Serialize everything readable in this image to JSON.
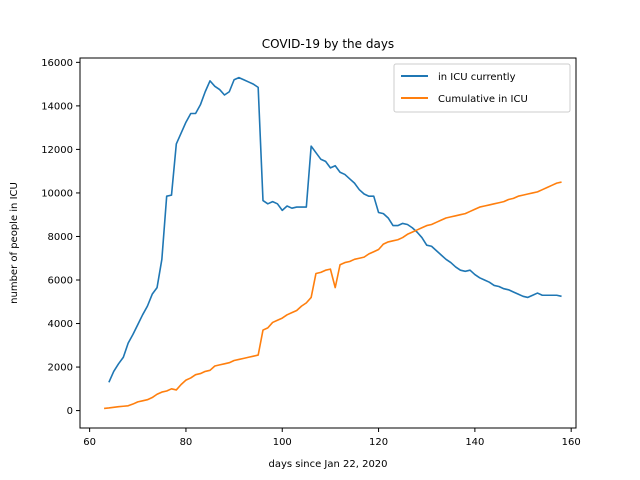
{
  "chart_data": {
    "type": "line",
    "title": "COVID-19 by the days",
    "xlabel": "days since Jan 22, 2020",
    "ylabel": "number of people in ICU",
    "xlim": [
      58,
      161
    ],
    "ylim": [
      -800,
      16200
    ],
    "x_ticks": [
      60,
      80,
      100,
      120,
      140,
      160
    ],
    "y_ticks": [
      0,
      2000,
      4000,
      6000,
      8000,
      10000,
      12000,
      14000,
      16000
    ],
    "grid": false,
    "legend_position": "top-right",
    "series": [
      {
        "name": "in ICU currently",
        "color": "#1f77b4",
        "points": [
          [
            64,
            1300
          ],
          [
            65,
            1800
          ],
          [
            66,
            2150
          ],
          [
            67,
            2450
          ],
          [
            68,
            3100
          ],
          [
            69,
            3500
          ],
          [
            70,
            3950
          ],
          [
            71,
            4400
          ],
          [
            72,
            4800
          ],
          [
            73,
            5350
          ],
          [
            74,
            5650
          ],
          [
            75,
            6950
          ],
          [
            76,
            9850
          ],
          [
            77,
            9900
          ],
          [
            78,
            12250
          ],
          [
            79,
            12750
          ],
          [
            80,
            13250
          ],
          [
            81,
            13650
          ],
          [
            82,
            13650
          ],
          [
            83,
            14050
          ],
          [
            84,
            14650
          ],
          [
            85,
            15150
          ],
          [
            86,
            14900
          ],
          [
            87,
            14750
          ],
          [
            88,
            14500
          ],
          [
            89,
            14650
          ],
          [
            90,
            15200
          ],
          [
            91,
            15300
          ],
          [
            92,
            15200
          ],
          [
            93,
            15100
          ],
          [
            94,
            15000
          ],
          [
            95,
            14850
          ],
          [
            96,
            9650
          ],
          [
            97,
            9500
          ],
          [
            98,
            9600
          ],
          [
            99,
            9500
          ],
          [
            100,
            9200
          ],
          [
            101,
            9400
          ],
          [
            102,
            9300
          ],
          [
            103,
            9350
          ],
          [
            104,
            9350
          ],
          [
            105,
            9350
          ],
          [
            106,
            12150
          ],
          [
            107,
            11850
          ],
          [
            108,
            11550
          ],
          [
            109,
            11450
          ],
          [
            110,
            11150
          ],
          [
            111,
            11250
          ],
          [
            112,
            10950
          ],
          [
            113,
            10850
          ],
          [
            114,
            10650
          ],
          [
            115,
            10450
          ],
          [
            116,
            10150
          ],
          [
            117,
            9950
          ],
          [
            118,
            9850
          ],
          [
            119,
            9850
          ],
          [
            120,
            9100
          ],
          [
            121,
            9050
          ],
          [
            122,
            8850
          ],
          [
            123,
            8500
          ],
          [
            124,
            8500
          ],
          [
            125,
            8600
          ],
          [
            126,
            8550
          ],
          [
            127,
            8400
          ],
          [
            128,
            8200
          ],
          [
            129,
            7950
          ],
          [
            130,
            7600
          ],
          [
            131,
            7550
          ],
          [
            132,
            7350
          ],
          [
            133,
            7150
          ],
          [
            134,
            6950
          ],
          [
            135,
            6800
          ],
          [
            136,
            6600
          ],
          [
            137,
            6450
          ],
          [
            138,
            6400
          ],
          [
            139,
            6450
          ],
          [
            140,
            6250
          ],
          [
            141,
            6100
          ],
          [
            142,
            6000
          ],
          [
            143,
            5900
          ],
          [
            144,
            5750
          ],
          [
            145,
            5700
          ],
          [
            146,
            5600
          ],
          [
            147,
            5550
          ],
          [
            148,
            5450
          ],
          [
            149,
            5350
          ],
          [
            150,
            5250
          ],
          [
            151,
            5200
          ],
          [
            152,
            5300
          ],
          [
            153,
            5400
          ],
          [
            154,
            5300
          ],
          [
            155,
            5300
          ],
          [
            156,
            5300
          ],
          [
            157,
            5300
          ],
          [
            158,
            5250
          ]
        ]
      },
      {
        "name": "Cumulative in ICU",
        "color": "#ff7f0e",
        "points": [
          [
            63,
            100
          ],
          [
            64,
            120
          ],
          [
            65,
            150
          ],
          [
            66,
            180
          ],
          [
            67,
            200
          ],
          [
            68,
            220
          ],
          [
            69,
            300
          ],
          [
            70,
            400
          ],
          [
            71,
            450
          ],
          [
            72,
            500
          ],
          [
            73,
            600
          ],
          [
            74,
            750
          ],
          [
            75,
            850
          ],
          [
            76,
            900
          ],
          [
            77,
            1000
          ],
          [
            78,
            950
          ],
          [
            79,
            1200
          ],
          [
            80,
            1400
          ],
          [
            81,
            1500
          ],
          [
            82,
            1650
          ],
          [
            83,
            1700
          ],
          [
            84,
            1800
          ],
          [
            85,
            1850
          ],
          [
            86,
            2050
          ],
          [
            87,
            2100
          ],
          [
            88,
            2150
          ],
          [
            89,
            2200
          ],
          [
            90,
            2300
          ],
          [
            91,
            2350
          ],
          [
            92,
            2400
          ],
          [
            93,
            2450
          ],
          [
            94,
            2500
          ],
          [
            95,
            2550
          ],
          [
            96,
            3700
          ],
          [
            97,
            3800
          ],
          [
            98,
            4050
          ],
          [
            99,
            4150
          ],
          [
            100,
            4250
          ],
          [
            101,
            4400
          ],
          [
            102,
            4500
          ],
          [
            103,
            4600
          ],
          [
            104,
            4800
          ],
          [
            105,
            4950
          ],
          [
            106,
            5200
          ],
          [
            107,
            6300
          ],
          [
            108,
            6350
          ],
          [
            109,
            6450
          ],
          [
            110,
            6500
          ],
          [
            111,
            5650
          ],
          [
            112,
            6700
          ],
          [
            113,
            6800
          ],
          [
            114,
            6850
          ],
          [
            115,
            6950
          ],
          [
            116,
            7000
          ],
          [
            117,
            7050
          ],
          [
            118,
            7200
          ],
          [
            119,
            7300
          ],
          [
            120,
            7400
          ],
          [
            121,
            7650
          ],
          [
            122,
            7750
          ],
          [
            123,
            7800
          ],
          [
            124,
            7850
          ],
          [
            125,
            7950
          ],
          [
            126,
            8100
          ],
          [
            127,
            8200
          ],
          [
            128,
            8300
          ],
          [
            129,
            8400
          ],
          [
            130,
            8500
          ],
          [
            131,
            8550
          ],
          [
            132,
            8650
          ],
          [
            133,
            8750
          ],
          [
            134,
            8850
          ],
          [
            135,
            8900
          ],
          [
            136,
            8950
          ],
          [
            137,
            9000
          ],
          [
            138,
            9050
          ],
          [
            139,
            9150
          ],
          [
            140,
            9250
          ],
          [
            141,
            9350
          ],
          [
            142,
            9400
          ],
          [
            143,
            9450
          ],
          [
            144,
            9500
          ],
          [
            145,
            9550
          ],
          [
            146,
            9600
          ],
          [
            147,
            9700
          ],
          [
            148,
            9750
          ],
          [
            149,
            9850
          ],
          [
            150,
            9900
          ],
          [
            151,
            9950
          ],
          [
            152,
            10000
          ],
          [
            153,
            10050
          ],
          [
            154,
            10150
          ],
          [
            155,
            10250
          ],
          [
            156,
            10350
          ],
          [
            157,
            10450
          ],
          [
            158,
            10500
          ]
        ]
      }
    ]
  }
}
